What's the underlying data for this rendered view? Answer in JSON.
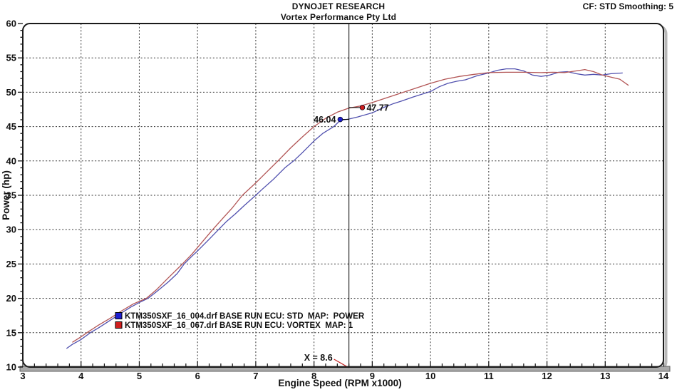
{
  "header": {
    "brand": "DYNOJET RESEARCH",
    "subtitle": "Vortex Performance Pty Ltd",
    "settings": "CF: STD  Smoothing: 5"
  },
  "chart_data": {
    "type": "line",
    "title": "Vortex Performance Pty Ltd",
    "xlabel": "Engine Speed (RPM x1000)",
    "ylabel": "Power (hp)",
    "xlim": [
      3,
      14
    ],
    "ylim": [
      10,
      60
    ],
    "xticks": [
      3,
      4,
      5,
      6,
      7,
      8,
      9,
      10,
      11,
      12,
      13,
      14
    ],
    "yticks": [
      10,
      15,
      20,
      25,
      30,
      35,
      40,
      45,
      50,
      55,
      60
    ],
    "x_minor_step": 0.2,
    "y_minor_step": 1,
    "grid": "dashed",
    "legend_position": "inside-lower-left",
    "series": [
      {
        "name": "KTM350SXF_16_004.drf BASE RUN ECU: STD  MAP:  POWER",
        "color": "#5050ae",
        "marker_color": "#1e1ed0",
        "points": [
          [
            3.75,
            12.7
          ],
          [
            3.85,
            13.3
          ],
          [
            4.0,
            14.0
          ],
          [
            4.16,
            15.0
          ],
          [
            4.3,
            15.7
          ],
          [
            4.5,
            16.8
          ],
          [
            4.7,
            17.9
          ],
          [
            4.85,
            18.7
          ],
          [
            5.0,
            19.4
          ],
          [
            5.15,
            20.0
          ],
          [
            5.3,
            21.0
          ],
          [
            5.5,
            22.4
          ],
          [
            5.65,
            23.6
          ],
          [
            5.77,
            25.0
          ],
          [
            5.9,
            26.1
          ],
          [
            6.0,
            26.9
          ],
          [
            6.2,
            28.6
          ],
          [
            6.36,
            30.0
          ],
          [
            6.5,
            31.2
          ],
          [
            6.65,
            32.3
          ],
          [
            6.8,
            33.5
          ],
          [
            7.0,
            35.0
          ],
          [
            7.1,
            35.8
          ],
          [
            7.3,
            37.3
          ],
          [
            7.5,
            39.0
          ],
          [
            7.65,
            40.0
          ],
          [
            7.8,
            41.2
          ],
          [
            8.0,
            42.9
          ],
          [
            8.15,
            44.0
          ],
          [
            8.34,
            45.0
          ],
          [
            8.45,
            45.9
          ],
          [
            8.6,
            46.1
          ],
          [
            8.75,
            46.4
          ],
          [
            9.0,
            47.0
          ],
          [
            9.2,
            47.8
          ],
          [
            9.35,
            48.3
          ],
          [
            9.5,
            48.7
          ],
          [
            9.7,
            49.3
          ],
          [
            9.85,
            49.7
          ],
          [
            10.0,
            50.1
          ],
          [
            10.15,
            50.8
          ],
          [
            10.3,
            51.3
          ],
          [
            10.45,
            51.6
          ],
          [
            10.6,
            51.8
          ],
          [
            10.8,
            52.4
          ],
          [
            11.0,
            52.8
          ],
          [
            11.15,
            53.2
          ],
          [
            11.3,
            53.4
          ],
          [
            11.45,
            53.4
          ],
          [
            11.6,
            53.1
          ],
          [
            11.75,
            52.5
          ],
          [
            11.9,
            52.3
          ],
          [
            12.05,
            52.5
          ],
          [
            12.2,
            52.9
          ],
          [
            12.35,
            53.0
          ],
          [
            12.5,
            52.7
          ],
          [
            12.65,
            52.5
          ],
          [
            12.8,
            52.6
          ],
          [
            12.95,
            52.5
          ],
          [
            13.1,
            52.7
          ],
          [
            13.3,
            52.8
          ]
        ]
      },
      {
        "name": "KTM350SXF_16_067.drf BASE RUN ECU: VORTEX  MAP: 1",
        "color": "#b25555",
        "marker_color": "#d01e1e",
        "points": [
          [
            3.85,
            13.6
          ],
          [
            4.0,
            14.4
          ],
          [
            4.1,
            15.0
          ],
          [
            4.3,
            16.1
          ],
          [
            4.5,
            17.1
          ],
          [
            4.7,
            18.2
          ],
          [
            4.9,
            19.2
          ],
          [
            5.12,
            20.0
          ],
          [
            5.3,
            21.3
          ],
          [
            5.5,
            23.0
          ],
          [
            5.74,
            25.0
          ],
          [
            5.9,
            26.4
          ],
          [
            6.1,
            28.4
          ],
          [
            6.26,
            30.0
          ],
          [
            6.45,
            31.8
          ],
          [
            6.6,
            33.2
          ],
          [
            6.77,
            35.0
          ],
          [
            7.0,
            36.8
          ],
          [
            7.2,
            38.5
          ],
          [
            7.38,
            40.0
          ],
          [
            7.6,
            41.9
          ],
          [
            7.8,
            43.5
          ],
          [
            8.0,
            45.0
          ],
          [
            8.2,
            46.2
          ],
          [
            8.4,
            47.1
          ],
          [
            8.6,
            47.7
          ],
          [
            8.8,
            48.0
          ],
          [
            9.0,
            48.5
          ],
          [
            9.25,
            49.2
          ],
          [
            9.5,
            49.9
          ],
          [
            9.75,
            50.6
          ],
          [
            10.0,
            51.3
          ],
          [
            10.25,
            51.9
          ],
          [
            10.5,
            52.3
          ],
          [
            10.75,
            52.6
          ],
          [
            11.0,
            52.85
          ],
          [
            11.3,
            52.9
          ],
          [
            11.6,
            52.9
          ],
          [
            11.9,
            52.85
          ],
          [
            12.1,
            52.9
          ],
          [
            12.3,
            52.85
          ],
          [
            12.5,
            53.1
          ],
          [
            12.65,
            53.3
          ],
          [
            12.8,
            53.0
          ],
          [
            12.95,
            52.5
          ],
          [
            13.1,
            52.2
          ],
          [
            13.25,
            51.9
          ],
          [
            13.4,
            51.0
          ]
        ]
      }
    ],
    "cursor": {
      "x": 8.6,
      "label": "X = 8.6",
      "leader_color": "#c02020"
    },
    "markers": [
      {
        "series": "std",
        "label": "46.04",
        "x": 8.45,
        "y": 46.04,
        "side": "left"
      },
      {
        "series": "vortex",
        "label": "47.77",
        "x": 8.83,
        "y": 47.77,
        "side": "right"
      }
    ]
  },
  "colors": {
    "frame": "#1a1a1a",
    "grid": "#333333",
    "axis_band": "#a9a9a9",
    "shadow": "#b8b8b8"
  }
}
